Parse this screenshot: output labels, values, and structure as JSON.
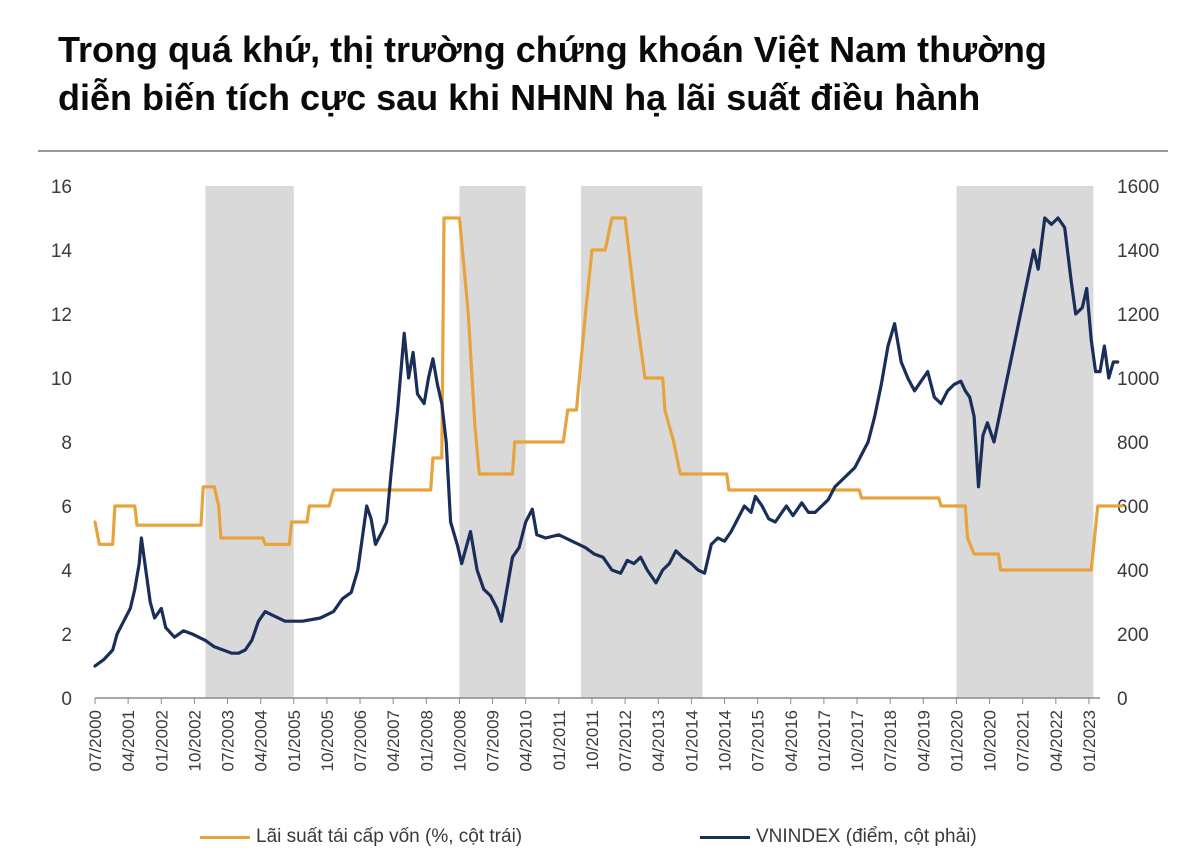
{
  "title_lines": [
    "Trong quá khứ, thị trường chứng khoán Việt Nam thường",
    "diễn biến tích cực sau khi NHNN hạ lãi suất điều hành"
  ],
  "chart_data": {
    "type": "line",
    "title": "Trong quá khứ, thị trường chứng khoán Việt Nam thường diễn biến tích cực sau khi NHNN hạ lãi suất điều hành",
    "x_range": [
      2000.5,
      2023.25
    ],
    "y_left": {
      "range": [
        0,
        16
      ],
      "ticks": [
        "0",
        "2",
        "4",
        "6",
        "8",
        "10",
        "12",
        "14",
        "16"
      ],
      "label": ""
    },
    "y_right": {
      "range": [
        0,
        1600
      ],
      "ticks": [
        "0",
        "200",
        "400",
        "600",
        "800",
        "1000",
        "1200",
        "1400",
        "1600"
      ],
      "label": ""
    },
    "x_tick_labels": [
      "07/2000",
      "04/2001",
      "01/2002",
      "10/2002",
      "07/2003",
      "04/2004",
      "01/2005",
      "10/2005",
      "07/2006",
      "04/2007",
      "01/2008",
      "10/2008",
      "07/2009",
      "04/2010",
      "01/2011",
      "10/2011",
      "07/2012",
      "04/2013",
      "01/2014",
      "10/2014",
      "07/2015",
      "04/2016",
      "01/2017",
      "10/2017",
      "07/2018",
      "04/2019",
      "01/2020",
      "10/2020",
      "07/2021",
      "04/2022",
      "01/2023"
    ],
    "shaded_periods": [
      [
        2003.0,
        2005.0
      ],
      [
        2008.75,
        2010.25
      ],
      [
        2011.5,
        2014.25
      ],
      [
        2020.0,
        2023.1
      ]
    ],
    "grid": false,
    "legend_position": "bottom",
    "series": [
      {
        "name": "Lãi suất tái cấp vốn (%, cột trái)",
        "axis": "left",
        "color": "#e8a33c",
        "points": [
          [
            2000.5,
            5.5
          ],
          [
            2000.6,
            4.8
          ],
          [
            2000.9,
            4.8
          ],
          [
            2000.95,
            6.0
          ],
          [
            2001.4,
            6.0
          ],
          [
            2001.45,
            5.4
          ],
          [
            2002.9,
            5.4
          ],
          [
            2002.95,
            6.6
          ],
          [
            2003.2,
            6.6
          ],
          [
            2003.3,
            6.0
          ],
          [
            2003.35,
            5.0
          ],
          [
            2004.3,
            5.0
          ],
          [
            2004.35,
            4.8
          ],
          [
            2004.9,
            4.8
          ],
          [
            2004.95,
            5.5
          ],
          [
            2005.3,
            5.5
          ],
          [
            2005.35,
            6.0
          ],
          [
            2005.8,
            6.0
          ],
          [
            2005.9,
            6.5
          ],
          [
            2007.9,
            6.5
          ],
          [
            2008.1,
            6.5
          ],
          [
            2008.15,
            7.5
          ],
          [
            2008.35,
            7.5
          ],
          [
            2008.4,
            15.0
          ],
          [
            2008.75,
            15.0
          ],
          [
            2008.95,
            12.0
          ],
          [
            2009.1,
            8.5
          ],
          [
            2009.2,
            7.0
          ],
          [
            2009.95,
            7.0
          ],
          [
            2010.0,
            8.0
          ],
          [
            2011.1,
            8.0
          ],
          [
            2011.2,
            9.0
          ],
          [
            2011.4,
            9.0
          ],
          [
            2011.6,
            12.0
          ],
          [
            2011.75,
            14.0
          ],
          [
            2012.05,
            14.0
          ],
          [
            2012.2,
            15.0
          ],
          [
            2012.5,
            15.0
          ],
          [
            2012.75,
            12.0
          ],
          [
            2012.95,
            10.0
          ],
          [
            2013.35,
            10.0
          ],
          [
            2013.4,
            9.0
          ],
          [
            2013.6,
            8.0
          ],
          [
            2013.75,
            7.0
          ],
          [
            2014.8,
            7.0
          ],
          [
            2014.85,
            6.5
          ],
          [
            2017.8,
            6.5
          ],
          [
            2017.85,
            6.25
          ],
          [
            2019.6,
            6.25
          ],
          [
            2019.65,
            6.0
          ],
          [
            2020.2,
            6.0
          ],
          [
            2020.25,
            5.0
          ],
          [
            2020.4,
            4.5
          ],
          [
            2020.95,
            4.5
          ],
          [
            2021.0,
            4.0
          ],
          [
            2023.05,
            4.0
          ],
          [
            2023.2,
            6.0
          ],
          [
            2023.75,
            6.0
          ]
        ]
      },
      {
        "name": "VNINDEX (điểm, cột phải)",
        "axis": "right",
        "color": "#1a2e5a",
        "points": [
          [
            2000.5,
            100
          ],
          [
            2000.7,
            120
          ],
          [
            2000.9,
            150
          ],
          [
            2001.0,
            200
          ],
          [
            2001.15,
            240
          ],
          [
            2001.3,
            280
          ],
          [
            2001.4,
            340
          ],
          [
            2001.5,
            420
          ],
          [
            2001.55,
            500
          ],
          [
            2001.65,
            400
          ],
          [
            2001.75,
            300
          ],
          [
            2001.85,
            250
          ],
          [
            2002.0,
            280
          ],
          [
            2002.1,
            220
          ],
          [
            2002.3,
            190
          ],
          [
            2002.5,
            210
          ],
          [
            2002.7,
            200
          ],
          [
            2003.0,
            180
          ],
          [
            2003.2,
            160
          ],
          [
            2003.4,
            150
          ],
          [
            2003.6,
            140
          ],
          [
            2003.75,
            140
          ],
          [
            2003.9,
            150
          ],
          [
            2004.05,
            180
          ],
          [
            2004.2,
            240
          ],
          [
            2004.35,
            270
          ],
          [
            2004.5,
            260
          ],
          [
            2004.8,
            240
          ],
          [
            2005.2,
            240
          ],
          [
            2005.6,
            250
          ],
          [
            2005.9,
            270
          ],
          [
            2006.1,
            310
          ],
          [
            2006.3,
            330
          ],
          [
            2006.45,
            400
          ],
          [
            2006.55,
            500
          ],
          [
            2006.65,
            600
          ],
          [
            2006.75,
            560
          ],
          [
            2006.85,
            480
          ],
          [
            2007.0,
            520
          ],
          [
            2007.1,
            550
          ],
          [
            2007.2,
            700
          ],
          [
            2007.35,
            900
          ],
          [
            2007.5,
            1140
          ],
          [
            2007.6,
            1000
          ],
          [
            2007.7,
            1080
          ],
          [
            2007.8,
            950
          ],
          [
            2007.95,
            920
          ],
          [
            2008.05,
            1000
          ],
          [
            2008.15,
            1060
          ],
          [
            2008.25,
            980
          ],
          [
            2008.35,
            920
          ],
          [
            2008.45,
            800
          ],
          [
            2008.55,
            550
          ],
          [
            2008.7,
            480
          ],
          [
            2008.8,
            420
          ],
          [
            2009.0,
            520
          ],
          [
            2009.15,
            400
          ],
          [
            2009.3,
            340
          ],
          [
            2009.45,
            320
          ],
          [
            2009.6,
            280
          ],
          [
            2009.7,
            240
          ],
          [
            2009.8,
            320
          ],
          [
            2009.95,
            440
          ],
          [
            2010.1,
            470
          ],
          [
            2010.25,
            550
          ],
          [
            2010.4,
            590
          ],
          [
            2010.5,
            510
          ],
          [
            2010.7,
            500
          ],
          [
            2011.0,
            510
          ],
          [
            2011.3,
            490
          ],
          [
            2011.6,
            470
          ],
          [
            2011.8,
            450
          ],
          [
            2012.0,
            440
          ],
          [
            2012.2,
            400
          ],
          [
            2012.4,
            390
          ],
          [
            2012.55,
            430
          ],
          [
            2012.7,
            420
          ],
          [
            2012.85,
            440
          ],
          [
            2013.0,
            400
          ],
          [
            2013.2,
            360
          ],
          [
            2013.35,
            400
          ],
          [
            2013.5,
            420
          ],
          [
            2013.65,
            460
          ],
          [
            2013.8,
            440
          ],
          [
            2014.0,
            420
          ],
          [
            2014.15,
            400
          ],
          [
            2014.3,
            390
          ],
          [
            2014.45,
            480
          ],
          [
            2014.6,
            500
          ],
          [
            2014.75,
            490
          ],
          [
            2014.9,
            520
          ],
          [
            2015.05,
            560
          ],
          [
            2015.2,
            600
          ],
          [
            2015.35,
            580
          ],
          [
            2015.45,
            630
          ],
          [
            2015.6,
            600
          ],
          [
            2015.75,
            560
          ],
          [
            2015.9,
            550
          ],
          [
            2016.0,
            570
          ],
          [
            2016.15,
            600
          ],
          [
            2016.3,
            570
          ],
          [
            2016.5,
            610
          ],
          [
            2016.65,
            580
          ],
          [
            2016.8,
            580
          ],
          [
            2016.95,
            600
          ],
          [
            2017.1,
            620
          ],
          [
            2017.25,
            660
          ],
          [
            2017.4,
            680
          ],
          [
            2017.55,
            700
          ],
          [
            2017.7,
            720
          ],
          [
            2017.85,
            760
          ],
          [
            2018.0,
            800
          ],
          [
            2018.15,
            880
          ],
          [
            2018.3,
            980
          ],
          [
            2018.45,
            1100
          ],
          [
            2018.6,
            1170
          ],
          [
            2018.75,
            1050
          ],
          [
            2018.9,
            1000
          ],
          [
            2019.05,
            960
          ],
          [
            2019.2,
            990
          ],
          [
            2019.35,
            1020
          ],
          [
            2019.5,
            940
          ],
          [
            2019.65,
            920
          ],
          [
            2019.8,
            960
          ],
          [
            2019.95,
            980
          ],
          [
            2020.1,
            990
          ],
          [
            2020.2,
            960
          ],
          [
            2020.3,
            940
          ],
          [
            2020.4,
            880
          ],
          [
            2020.5,
            660
          ],
          [
            2020.6,
            820
          ],
          [
            2020.7,
            860
          ],
          [
            2020.85,
            800
          ],
          [
            2021.0,
            900
          ],
          [
            2021.15,
            1000
          ],
          [
            2021.3,
            1100
          ],
          [
            2021.45,
            1200
          ],
          [
            2021.6,
            1300
          ],
          [
            2021.75,
            1400
          ],
          [
            2021.85,
            1340
          ],
          [
            2022.0,
            1500
          ],
          [
            2022.15,
            1480
          ],
          [
            2022.3,
            1500
          ],
          [
            2022.45,
            1470
          ],
          [
            2022.6,
            1300
          ],
          [
            2022.7,
            1200
          ],
          [
            2022.85,
            1220
          ],
          [
            2022.95,
            1280
          ],
          [
            2023.05,
            1120
          ],
          [
            2023.15,
            1020
          ],
          [
            2023.25,
            1020
          ],
          [
            2023.35,
            1100
          ],
          [
            2023.45,
            1000
          ],
          [
            2023.55,
            1050
          ],
          [
            2023.65,
            1050
          ]
        ]
      }
    ]
  }
}
